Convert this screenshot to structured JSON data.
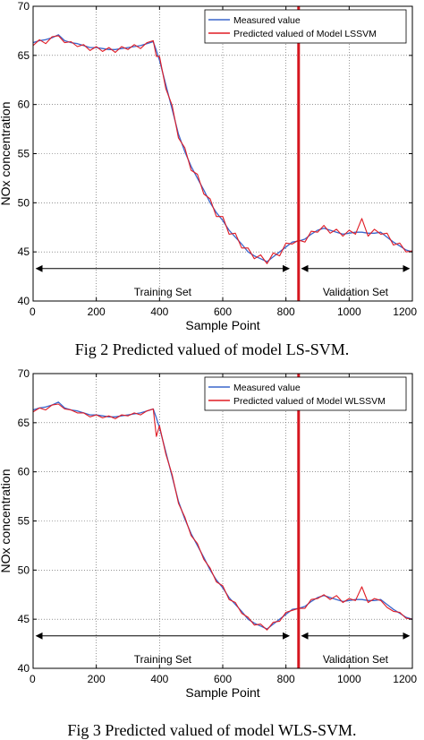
{
  "captions": [
    "Fig 2 Predicted valued of model LS-SVM.",
    "Fig 3 Predicted valued of model WLS-SVM."
  ],
  "colors": {
    "measured": "#3a66cc",
    "predicted": "#e01b24",
    "divider": "#d6161f"
  },
  "chart_data": [
    {
      "type": "line",
      "xlabel": "Sample Point",
      "ylabel": "NOx concentration",
      "xlim": [
        0,
        1200
      ],
      "ylim": [
        40,
        70
      ],
      "xticks": [
        0,
        200,
        400,
        600,
        800,
        1000,
        1200
      ],
      "yticks": [
        40,
        45,
        50,
        55,
        60,
        65,
        70
      ],
      "grid": true,
      "legend_position": "top-right",
      "divider_x": 840,
      "annotations": [
        {
          "label": "Training Set",
          "x_start": 10,
          "x_end": 810,
          "y": 43.3
        },
        {
          "label": "Validation Set",
          "x_start": 850,
          "x_end": 1190,
          "y": 43.3
        }
      ],
      "series": [
        {
          "name": "Measured value",
          "x": [
            0,
            20,
            40,
            60,
            80,
            100,
            120,
            140,
            160,
            180,
            200,
            220,
            240,
            260,
            280,
            300,
            320,
            340,
            360,
            380,
            390,
            400,
            420,
            440,
            460,
            480,
            500,
            520,
            540,
            560,
            580,
            600,
            620,
            640,
            660,
            680,
            700,
            720,
            740,
            760,
            780,
            800,
            820,
            840,
            860,
            880,
            900,
            920,
            940,
            960,
            980,
            1000,
            1020,
            1040,
            1060,
            1080,
            1100,
            1120,
            1140,
            1160,
            1180,
            1200
          ],
          "y": [
            66.3,
            66.5,
            66.6,
            66.8,
            67.1,
            66.5,
            66.3,
            66.2,
            66.0,
            65.8,
            65.8,
            65.7,
            65.6,
            65.6,
            65.7,
            65.8,
            65.9,
            66.0,
            66.2,
            66.4,
            65.5,
            64.5,
            62.0,
            59.5,
            57.0,
            55.2,
            53.7,
            52.5,
            51.3,
            50.0,
            49.0,
            48.2,
            47.2,
            46.5,
            45.8,
            45.0,
            44.6,
            44.3,
            44.0,
            44.5,
            45.0,
            45.5,
            46.0,
            46.1,
            46.3,
            46.8,
            47.2,
            47.4,
            47.2,
            47.0,
            46.8,
            46.9,
            47.0,
            47.0,
            46.9,
            46.9,
            47.0,
            46.5,
            46.0,
            45.6,
            45.2,
            45.0
          ]
        },
        {
          "name": "Predicted valued of Model LSSVM",
          "x": [
            0,
            20,
            40,
            60,
            80,
            100,
            120,
            140,
            160,
            180,
            200,
            220,
            240,
            260,
            280,
            300,
            320,
            340,
            360,
            380,
            390,
            400,
            420,
            440,
            460,
            480,
            500,
            520,
            540,
            560,
            580,
            600,
            620,
            640,
            660,
            680,
            700,
            720,
            740,
            760,
            780,
            800,
            820,
            840,
            860,
            880,
            900,
            920,
            940,
            960,
            980,
            1000,
            1020,
            1040,
            1060,
            1080,
            1100,
            1120,
            1140,
            1160,
            1180,
            1200
          ],
          "y": [
            66.0,
            66.6,
            66.2,
            66.9,
            67.0,
            66.3,
            66.4,
            65.9,
            66.1,
            65.5,
            65.9,
            65.4,
            65.8,
            65.3,
            65.9,
            65.6,
            66.1,
            65.7,
            66.3,
            66.5,
            64.9,
            64.9,
            61.6,
            59.9,
            56.6,
            55.6,
            53.3,
            52.9,
            50.9,
            50.4,
            48.6,
            48.6,
            46.8,
            46.9,
            45.4,
            45.4,
            44.3,
            44.7,
            43.8,
            44.9,
            44.6,
            45.9,
            45.8,
            46.2,
            46.0,
            47.1,
            47.0,
            47.7,
            46.9,
            47.3,
            46.6,
            47.2,
            46.8,
            48.4,
            46.6,
            47.3,
            46.8,
            46.9,
            45.7,
            45.9,
            45.0,
            45.1
          ]
        }
      ]
    },
    {
      "type": "line",
      "xlabel": "Sample Point",
      "ylabel": "NOx concentration",
      "xlim": [
        0,
        1200
      ],
      "ylim": [
        40,
        70
      ],
      "xticks": [
        0,
        200,
        400,
        600,
        800,
        1000,
        1200
      ],
      "yticks": [
        40,
        45,
        50,
        55,
        60,
        65,
        70
      ],
      "grid": true,
      "legend_position": "top-right",
      "divider_x": 840,
      "annotations": [
        {
          "label": "Training Set",
          "x_start": 10,
          "x_end": 810,
          "y": 43.3
        },
        {
          "label": "Validation Set",
          "x_start": 850,
          "x_end": 1190,
          "y": 43.3
        }
      ],
      "series": [
        {
          "name": "Measured value",
          "x": [
            0,
            20,
            40,
            60,
            80,
            100,
            120,
            140,
            160,
            180,
            200,
            220,
            240,
            260,
            280,
            300,
            320,
            340,
            360,
            380,
            390,
            400,
            420,
            440,
            460,
            480,
            500,
            520,
            540,
            560,
            580,
            600,
            620,
            640,
            660,
            680,
            700,
            720,
            740,
            760,
            780,
            800,
            820,
            840,
            860,
            880,
            900,
            920,
            940,
            960,
            980,
            1000,
            1020,
            1040,
            1060,
            1080,
            1100,
            1120,
            1140,
            1160,
            1180,
            1200
          ],
          "y": [
            66.3,
            66.5,
            66.6,
            66.8,
            67.1,
            66.5,
            66.3,
            66.2,
            66.0,
            65.8,
            65.8,
            65.7,
            65.6,
            65.6,
            65.7,
            65.8,
            65.9,
            66.0,
            66.2,
            66.4,
            65.5,
            64.5,
            62.0,
            59.5,
            57.0,
            55.2,
            53.7,
            52.5,
            51.3,
            50.0,
            49.0,
            48.2,
            47.2,
            46.5,
            45.8,
            45.0,
            44.6,
            44.3,
            44.0,
            44.5,
            45.0,
            45.5,
            46.0,
            46.1,
            46.3,
            46.8,
            47.2,
            47.4,
            47.2,
            47.0,
            46.8,
            46.9,
            47.0,
            47.0,
            46.9,
            46.9,
            47.0,
            46.5,
            46.0,
            45.6,
            45.2,
            45.0
          ]
        },
        {
          "name": "Predicted valued of Model WLSSVM",
          "x": [
            0,
            20,
            40,
            60,
            80,
            100,
            120,
            140,
            160,
            180,
            200,
            220,
            240,
            260,
            280,
            300,
            320,
            340,
            360,
            380,
            390,
            400,
            420,
            440,
            460,
            480,
            500,
            520,
            540,
            560,
            580,
            600,
            620,
            640,
            660,
            680,
            700,
            720,
            740,
            760,
            780,
            800,
            820,
            840,
            860,
            880,
            900,
            920,
            940,
            960,
            980,
            1000,
            1020,
            1040,
            1060,
            1080,
            1100,
            1120,
            1140,
            1160,
            1180,
            1200
          ],
          "y": [
            66.1,
            66.5,
            66.3,
            66.8,
            66.9,
            66.4,
            66.3,
            66.0,
            66.0,
            65.6,
            65.8,
            65.5,
            65.7,
            65.4,
            65.8,
            65.7,
            66.0,
            65.8,
            66.2,
            66.4,
            63.6,
            64.7,
            61.8,
            59.7,
            56.8,
            55.4,
            53.5,
            52.7,
            51.1,
            50.2,
            48.8,
            48.4,
            47.0,
            46.7,
            45.6,
            45.2,
            44.4,
            44.5,
            43.9,
            44.7,
            44.8,
            45.7,
            45.9,
            46.1,
            46.1,
            47.0,
            47.1,
            47.5,
            47.0,
            47.4,
            46.7,
            47.1,
            46.9,
            48.3,
            46.7,
            47.1,
            46.9,
            46.2,
            45.8,
            45.7,
            45.1,
            45.0
          ]
        }
      ]
    }
  ]
}
